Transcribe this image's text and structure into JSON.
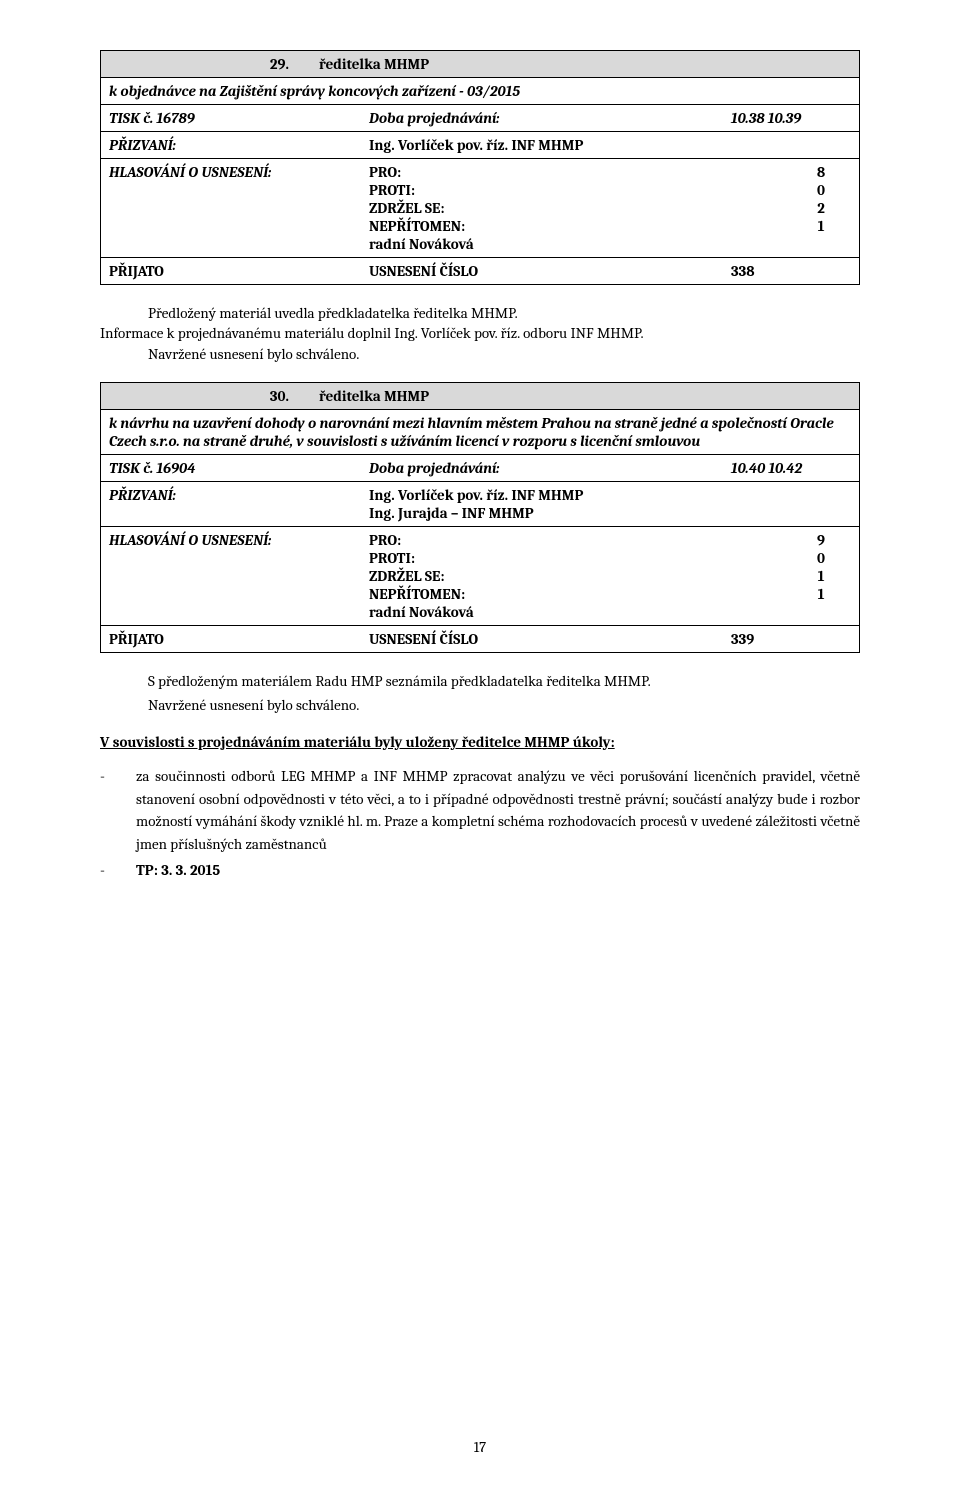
{
  "item29": {
    "number": "29.",
    "title": "ředitelka MHMP",
    "subject": "k objednávce na Zajištění správy koncových zařízení - 03/2015",
    "tiskLabel": "TISK č. 16789",
    "dobaLabel": "Doba projednávání:",
    "dobaValue": "10.38 10.39",
    "prizvaniLabel": "PŘIZVANÍ:",
    "prizvaniValue": "Ing. Vorlíček pov. říz. INF MHMP",
    "hlasLabel": "HLASOVÁNÍ O USNESENÍ:",
    "votes": {
      "proLabel": "PRO:",
      "proVal": "8",
      "protiLabel": "PROTI:",
      "protiVal": "0",
      "zdrzelLabel": "ZDRŽEL SE:",
      "zdrzelVal": "2",
      "nepritomenLabel": "NEPŘÍTOMEN:",
      "nepritomenVal": "1",
      "note": "radní Nováková"
    },
    "prijatoLabel": "PŘIJATO",
    "usneseniLabel": "USNESENÍ ČÍSLO",
    "usneseniVal": "338",
    "para1": "Předložený materiál uvedla předkladatelka ředitelka MHMP.",
    "para2": "Informace k projednávanému materiálu doplnil Ing. Vorlíček pov. říz. odboru INF MHMP.",
    "para3": "Navržené usnesení bylo schváleno."
  },
  "item30": {
    "number": "30.",
    "title": "ředitelka MHMP",
    "subject": "k návrhu na uzavření dohody o narovnání mezi hlavním městem Prahou na straně jedné a společností Oracle Czech s.r.o. na straně druhé, v souvislosti s užíváním licencí v rozporu s licenční smlouvou",
    "tiskLabel": "TISK č. 16904",
    "dobaLabel": "Doba projednávání:",
    "dobaValue": "10.40 10.42",
    "prizvaniLabel": "PŘIZVANÍ:",
    "prizvaniValue1": "Ing. Vorlíček pov. říz. INF MHMP",
    "prizvaniValue2": "Ing. Jurajda – INF MHMP",
    "hlasLabel": "HLASOVÁNÍ O USNESENÍ:",
    "votes": {
      "proLabel": "PRO:",
      "proVal": "9",
      "protiLabel": "PROTI:",
      "protiVal": "0",
      "zdrzelLabel": "ZDRŽEL SE:",
      "zdrzelVal": "1",
      "nepritomenLabel": "NEPŘÍTOMEN:",
      "nepritomenVal": "1",
      "note": "radní Nováková"
    },
    "prijatoLabel": "PŘIJATO",
    "usneseniLabel": "USNESENÍ ČÍSLO",
    "usneseniVal": "339",
    "para1": "S předloženým materiálem Radu HMP seznámila předkladatelka ředitelka MHMP.",
    "para2": "Navržené usnesení bylo schváleno.",
    "ukolyHeading": "V souvislosti s projednáváním materiálu byly uloženy ředitelce MHMP úkoly:",
    "bullet1": "za součinnosti odborů LEG MHMP a INF MHMP zpracovat analýzu ve věci porušování licenčních pravidel, včetně stanovení osobní odpovědnosti v této věci, a to i případné odpovědnosti trestně právní; součástí analýzy bude i rozbor možností vymáhání škody vzniklé hl. m. Praze a kompletní schéma rozhodovacích procesů v uvedené záležitosti včetně jmen příslušných zaměstnanců",
    "bullet2": "TP:  3. 3. 2015"
  },
  "pageNumber": "17"
}
